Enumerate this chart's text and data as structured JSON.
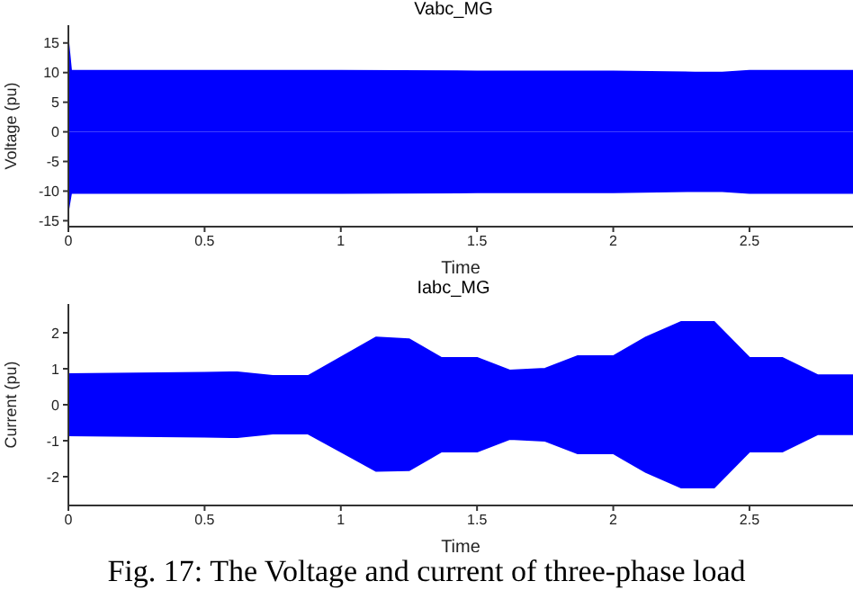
{
  "chart_data": [
    {
      "type": "area",
      "title": "Vabc_MG",
      "xlabel": "Time",
      "ylabel": "Voltage (pu)",
      "x": [
        0,
        0.01,
        0.5,
        1,
        1.5,
        2,
        2.3,
        2.4,
        2.5,
        2.88
      ],
      "series": [
        {
          "color": "#0000ff",
          "values": [
            15,
            10.3,
            10.3,
            10.3,
            10.2,
            10.2,
            10,
            10,
            10.3,
            10.3
          ]
        },
        {
          "color": "#0000ff",
          "values": [
            -13,
            -10.3,
            -10.3,
            -10.3,
            -10.2,
            -10.2,
            -10,
            -10,
            -10.3,
            -10.3
          ]
        }
      ],
      "xlim": [
        0,
        2.88
      ],
      "xticks": [
        0,
        0.5,
        1,
        1.5,
        2,
        2.5
      ],
      "ylim": [
        -16,
        18
      ],
      "yticks": [
        -15,
        -10,
        -5,
        0,
        5,
        10,
        15
      ],
      "grid": false
    },
    {
      "type": "area",
      "title": "Iabc_MG",
      "xlabel": "Time",
      "ylabel": "Current (pu)",
      "x": [
        0,
        0.5,
        0.62,
        0.75,
        0.88,
        1.13,
        1.25,
        1.37,
        1.5,
        1.62,
        1.75,
        1.87,
        2,
        2.12,
        2.25,
        2.37,
        2.5,
        2.62,
        2.75,
        2.88
      ],
      "series": [
        {
          "color": "#0000ff",
          "values": [
            0.85,
            0.89,
            0.9,
            0.8,
            0.8,
            1.87,
            1.82,
            1.3,
            1.3,
            0.95,
            1,
            1.35,
            1.35,
            1.87,
            2.3,
            2.3,
            1.3,
            1.3,
            0.82,
            0.82
          ]
        },
        {
          "color": "#0000ff",
          "values": [
            -0.85,
            -0.89,
            -0.9,
            -0.8,
            -0.8,
            -1.84,
            -1.82,
            -1.3,
            -1.3,
            -0.95,
            -1,
            -1.35,
            -1.35,
            -1.87,
            -2.3,
            -2.3,
            -1.3,
            -1.3,
            -0.82,
            -0.82
          ]
        }
      ],
      "xlim": [
        0,
        2.88
      ],
      "xticks": [
        0,
        0.5,
        1,
        1.5,
        2,
        2.5
      ],
      "ylim": [
        -2.8,
        2.8
      ],
      "yticks": [
        -2,
        -1,
        0,
        1,
        2
      ],
      "grid": false,
      "annotations": [
        "Fig. 17: The Voltage and current of three-phase load"
      ]
    }
  ]
}
